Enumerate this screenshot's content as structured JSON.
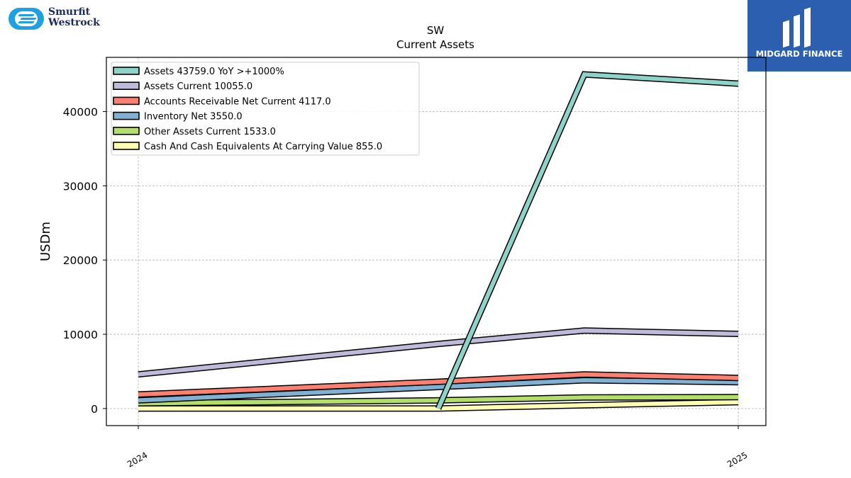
{
  "company_logo": {
    "line1": "Smurfit",
    "line2": "Westrock"
  },
  "brand": {
    "text": "MIDGARD FINANCE"
  },
  "colors": {
    "assets": "#8dd3c7",
    "assets_current": "#bebada",
    "accounts_receivable": "#fb8072",
    "inventory": "#80b1d3",
    "other_assets": "#b3de69",
    "cash": "#ffffb3"
  },
  "chart_data": {
    "type": "line",
    "title": "SW",
    "subtitle": "Current  Assets",
    "ylabel": "USDm",
    "xlabel": "",
    "ylim": [
      -2300,
      47300
    ],
    "yticks": [
      0,
      10000,
      20000,
      30000,
      40000
    ],
    "xtick_labels": [
      "2024",
      "2025"
    ],
    "grid": true,
    "legend_position": "top-left",
    "x": [
      "2024-Q1",
      "2024-Q3",
      "2025-Q1",
      "2025-Q2"
    ],
    "series": [
      {
        "name": "Assets",
        "legend": "Assets  43759.0 YoY >+1000%",
        "color": "#8dd3c7",
        "values": [
          null,
          0,
          45000,
          43759
        ]
      },
      {
        "name": "Assets Current",
        "legend": "Assets Current  10055.0",
        "color": "#bebada",
        "values": [
          4600,
          8700,
          10500,
          10055
        ]
      },
      {
        "name": "Accounts Receivable Net Current",
        "legend": "Accounts Receivable Net Current  4117.0",
        "color": "#fb8072",
        "values": [
          1900,
          3600,
          4600,
          4117
        ]
      },
      {
        "name": "Inventory Net",
        "legend": "Inventory Net  3550.0",
        "color": "#80b1d3",
        "values": [
          1100,
          2900,
          3800,
          3550
        ]
      },
      {
        "name": "Other Assets Current",
        "legend": "Other Assets Current  1533.0",
        "color": "#b3de69",
        "values": [
          700,
          1100,
          1500,
          1533
        ]
      },
      {
        "name": "Cash And Cash Equivalents At Carrying Value",
        "legend": "Cash And Cash Equivalents At Carrying Value  855.0",
        "color": "#ffffb3",
        "values": [
          0,
          0,
          450,
          855
        ]
      }
    ]
  }
}
